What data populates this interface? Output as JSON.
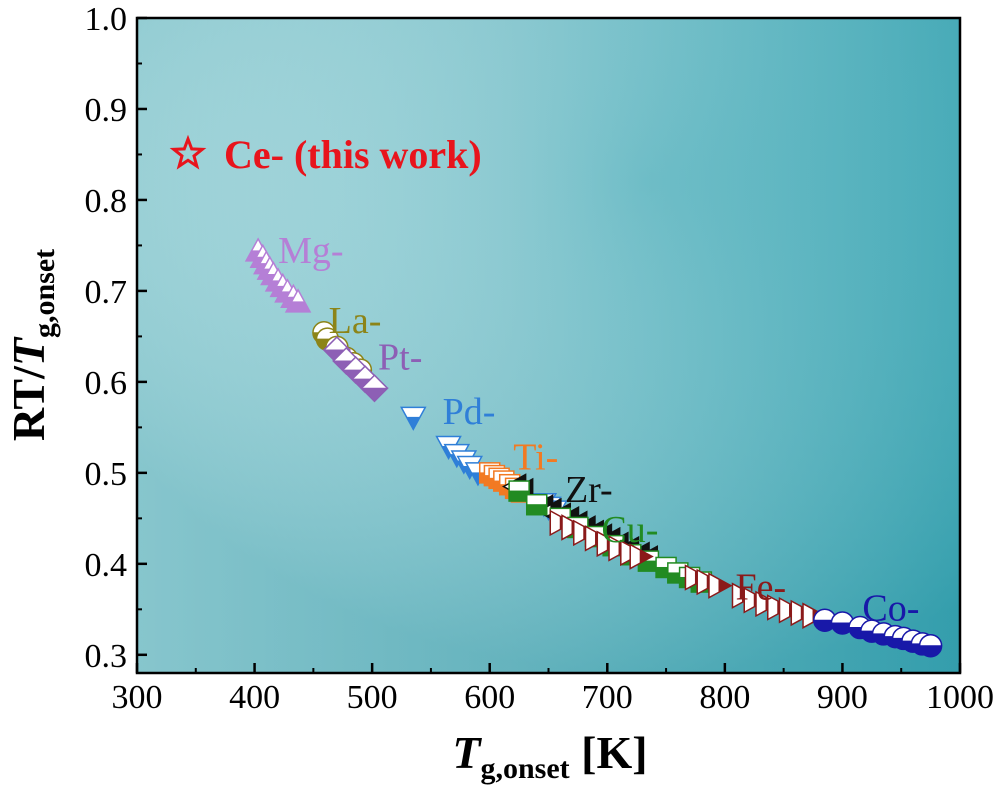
{
  "chart_data": {
    "type": "scatter",
    "title": "",
    "xlabel": {
      "main": "T",
      "sub": "g,onset",
      "unit": " [K]"
    },
    "ylabel": {
      "prefix": "RT/",
      "main": "T",
      "sub": "g,onset"
    },
    "xlim": [
      300,
      1000
    ],
    "ylim": [
      0.28,
      1.0
    ],
    "xticks": [
      300,
      400,
      500,
      600,
      700,
      800,
      900,
      1000
    ],
    "yticks": [
      0.3,
      0.4,
      0.5,
      0.6,
      0.7,
      0.8,
      0.9,
      1.0
    ],
    "xtick_labels": [
      "300",
      "400",
      "500",
      "600",
      "700",
      "800",
      "900",
      "1000"
    ],
    "ytick_labels": [
      "0.3",
      "0.4",
      "0.5",
      "0.6",
      "0.7",
      "0.8",
      "0.9",
      "1.0"
    ],
    "legend_this_work": {
      "label": "Ce- (this work)",
      "color": "#e8141c",
      "marker": "star"
    },
    "background": {
      "light": "#b9e3e6",
      "dark": "#39a6b4"
    },
    "series": [
      {
        "name": "Mg-",
        "color": "#b57fd6",
        "marker": "triangle-up",
        "label_at": [
          420,
          0.744
        ],
        "x": [
          403,
          407,
          410,
          413,
          416,
          420,
          424,
          428,
          433,
          437
        ],
        "y": [
          0.744,
          0.737,
          0.73,
          0.724,
          0.718,
          0.711,
          0.705,
          0.699,
          0.693,
          0.688
        ]
      },
      {
        "name": "La-",
        "color": "#8c8418",
        "marker": "circle",
        "label_at": [
          463,
          0.667
        ],
        "x": [
          459,
          462,
          470,
          478,
          484,
          490
        ],
        "y": [
          0.654,
          0.647,
          0.638,
          0.626,
          0.62,
          0.613
        ]
      },
      {
        "name": "Pt-",
        "color": "#8d5fb5",
        "marker": "diamond",
        "label_at": [
          505,
          0.627
        ],
        "x": [
          470,
          478,
          486,
          494,
          502
        ],
        "y": [
          0.635,
          0.623,
          0.613,
          0.603,
          0.593
        ]
      },
      {
        "name": "Pd-",
        "color": "#2f7fd8",
        "marker": "triangle-down",
        "label_at": [
          560,
          0.567
        ],
        "x": [
          535,
          565,
          572,
          578,
          583,
          590,
          646,
          650,
          655
        ],
        "y": [
          0.561,
          0.529,
          0.52,
          0.513,
          0.507,
          0.5,
          0.466,
          0.462,
          0.458
        ]
      },
      {
        "name": "Ti-",
        "color": "#f27a22",
        "marker": "square",
        "label_at": [
          620,
          0.517
        ],
        "x": [
          600,
          604,
          608,
          612,
          617,
          622,
          627
        ],
        "y": [
          0.5,
          0.497,
          0.494,
          0.491,
          0.487,
          0.483,
          0.479
        ]
      },
      {
        "name": "Zr-",
        "color": "#111111",
        "marker": "triangle-left",
        "label_at": [
          664,
          0.481
        ],
        "x": [
          622,
          628,
          645,
          652,
          660,
          667,
          674,
          681,
          688,
          695,
          702,
          709,
          718,
          727,
          734
        ],
        "y": [
          0.485,
          0.48,
          0.462,
          0.458,
          0.453,
          0.449,
          0.444,
          0.439,
          0.434,
          0.43,
          0.426,
          0.421,
          0.416,
          0.41,
          0.406
        ]
      },
      {
        "name": "Cu-",
        "color": "#228b22",
        "marker": "square",
        "label_at": [
          695,
          0.437
        ],
        "x": [
          625,
          640,
          660,
          675,
          690,
          705,
          720,
          735,
          750,
          760,
          770,
          780
        ],
        "y": [
          0.48,
          0.465,
          0.45,
          0.44,
          0.43,
          0.42,
          0.41,
          0.403,
          0.396,
          0.39,
          0.385,
          0.38
        ]
      },
      {
        "name": "Fe-",
        "color": "#8b1a1a",
        "marker": "triangle-right",
        "label_at": [
          809,
          0.374
        ],
        "x": [
          660,
          670,
          680,
          690,
          700,
          710,
          720,
          728,
          775,
          785,
          795,
          815,
          825,
          835,
          845,
          855,
          865,
          875
        ],
        "y": [
          0.445,
          0.44,
          0.434,
          0.428,
          0.422,
          0.417,
          0.412,
          0.408,
          0.385,
          0.38,
          0.376,
          0.365,
          0.36,
          0.356,
          0.352,
          0.349,
          0.346,
          0.343
        ]
      },
      {
        "name": "Co-",
        "color": "#1818a8",
        "marker": "circle",
        "label_at": [
          917,
          0.351
        ],
        "x": [
          885,
          900,
          915,
          925,
          935,
          945,
          952,
          960,
          968,
          975
        ],
        "y": [
          0.338,
          0.335,
          0.33,
          0.326,
          0.323,
          0.32,
          0.318,
          0.315,
          0.312,
          0.31
        ]
      }
    ]
  }
}
